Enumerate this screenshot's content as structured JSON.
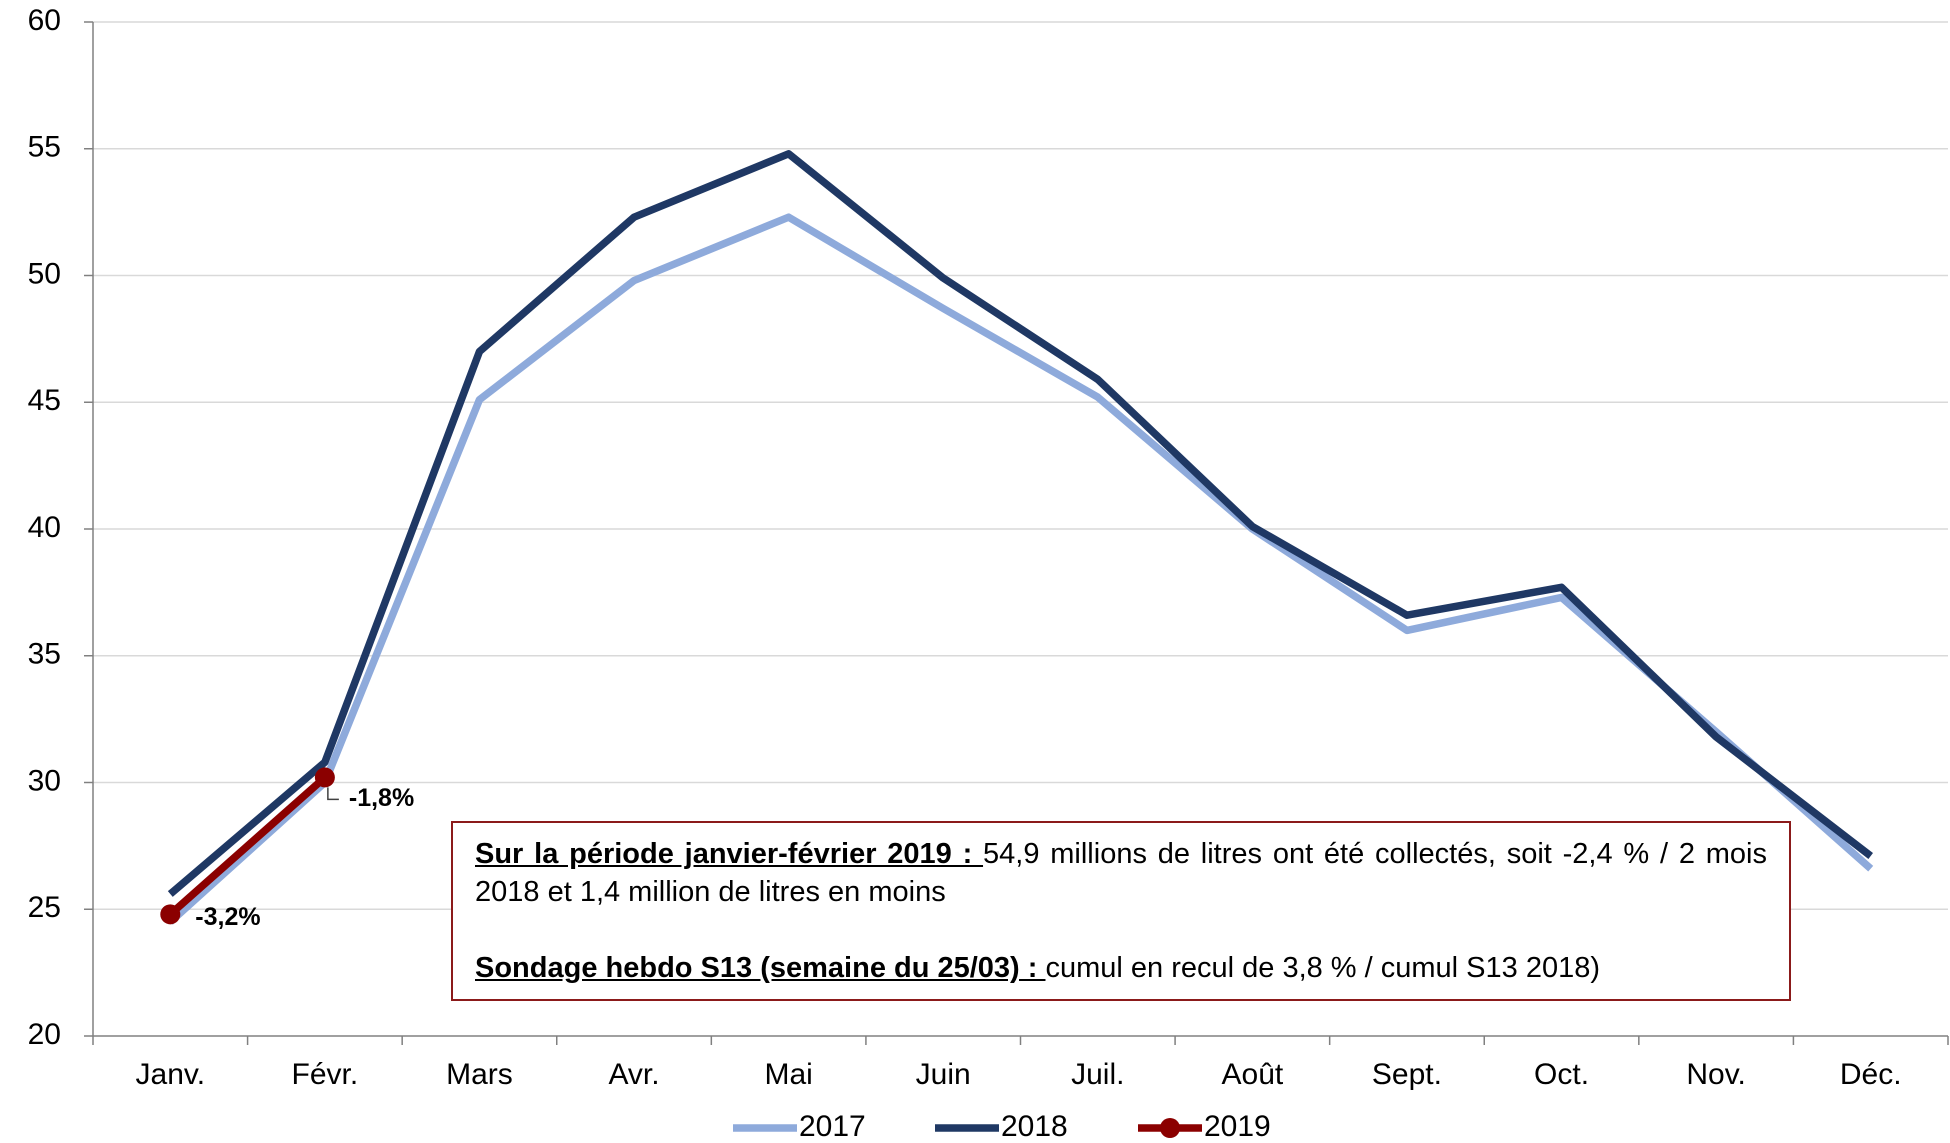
{
  "chart_data": {
    "type": "line",
    "categories": [
      "Janv.",
      "Févr.",
      "Mars",
      "Avr.",
      "Mai",
      "Juin",
      "Juil.",
      "Août",
      "Sept.",
      "Oct.",
      "Nov.",
      "Déc."
    ],
    "series": [
      {
        "name": "2017",
        "color": "#8eaadb",
        "values": [
          24.5,
          30.0,
          45.1,
          49.8,
          52.3,
          48.7,
          45.2,
          40.0,
          36.0,
          37.3,
          32.0,
          26.6
        ]
      },
      {
        "name": "2018",
        "color": "#1f3864",
        "values": [
          25.6,
          30.8,
          47.0,
          52.3,
          54.8,
          49.9,
          45.9,
          40.1,
          36.6,
          37.7,
          31.8,
          27.1
        ]
      },
      {
        "name": "2019",
        "color": "#8b0000",
        "marker": true,
        "values": [
          24.8,
          30.2,
          null,
          null,
          null,
          null,
          null,
          null,
          null,
          null,
          null,
          null
        ],
        "point_labels": [
          "-3,2%",
          "-1,8%",
          null,
          null,
          null,
          null,
          null,
          null,
          null,
          null,
          null,
          null
        ]
      }
    ],
    "ylim": [
      20,
      60
    ],
    "yticks": [
      20,
      25,
      30,
      35,
      40,
      45,
      50,
      55,
      60
    ],
    "grid": true,
    "legend": "bottom",
    "note": {
      "paragraphs": [
        {
          "lead": "Sur la période janvier-février 2019 : ",
          "text": "54,9 millions de litres ont été collectés, soit -2,4 % / 2 mois 2018 et 1,4 million de litres en moins"
        },
        {
          "lead": "Sondage hebdo S13 (semaine du 25/03) : ",
          "text": "cumul en recul de 3,8 % / cumul S13 2018)"
        }
      ]
    }
  }
}
